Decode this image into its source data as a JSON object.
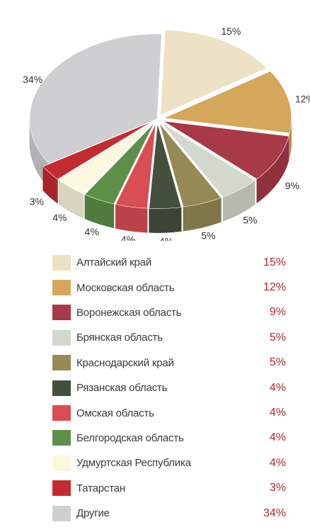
{
  "chart_data": {
    "type": "pie",
    "categories": [
      "Алтайский край",
      "Московская область",
      "Воронежская область",
      "Брянская область",
      "Краснодарский край",
      "Рязанская область",
      "Омская область",
      "Белгородская область",
      "Удмуртская Республика",
      "Татарстан",
      "Другие"
    ],
    "values": [
      15,
      12,
      9,
      5,
      5,
      4,
      4,
      4,
      4,
      3,
      34
    ],
    "value_labels": [
      "15%",
      "12%",
      "9%",
      "5%",
      "5%",
      "4%",
      "4%",
      "4%",
      "4%",
      "3%",
      "34%"
    ],
    "colors": [
      "#eee2c4",
      "#d4a75a",
      "#a83a48",
      "#d3d8cc",
      "#958a55",
      "#454f3e",
      "#d94d54",
      "#5e8f48",
      "#fbf8de",
      "#c42b31",
      "#cfcfd1"
    ],
    "style": "3d-exploded",
    "legend_position": "bottom"
  }
}
